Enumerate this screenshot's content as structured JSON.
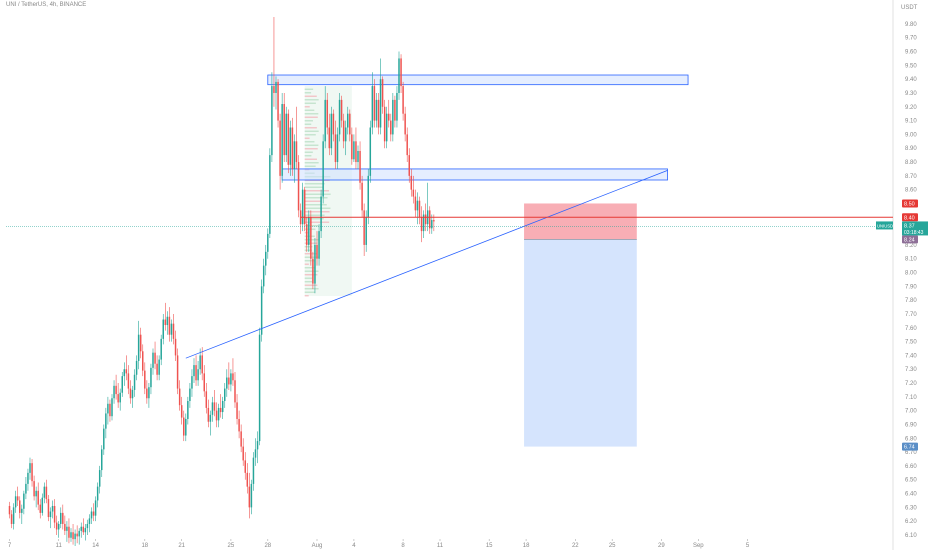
{
  "header": {
    "title": "UNI / TetherUS, 4h, BINANCE",
    "currency": "USDT"
  },
  "colors": {
    "up": "#26a69a",
    "down": "#ef5350",
    "trendline": "#2962ff",
    "zone_fill": "#cfe0ff",
    "zone_stroke": "#2962ff",
    "stop_fill": "#f7a0a8",
    "target_fill": "#d3e3fd",
    "price_line": "#26a69a",
    "entry_line": "#e53935",
    "badge_red": "#e53935",
    "badge_green": "#26a69a",
    "badge_purple": "#8e6f97",
    "badge_blue": "#5b8fc7"
  },
  "chart_data": {
    "type": "candlestick",
    "symbol": "UNIUSDT",
    "price_axis": {
      "range": [
        6.1,
        9.85
      ],
      "ticks": [
        "9.80",
        "9.70",
        "9.60",
        "9.50",
        "9.40",
        "9.30",
        "9.20",
        "9.10",
        "9.00",
        "8.90",
        "8.80",
        "8.70",
        "8.60",
        "8.50",
        "8.40",
        "8.30",
        "8.20",
        "8.10",
        "8.00",
        "7.90",
        "7.80",
        "7.70",
        "7.60",
        "7.50",
        "7.40",
        "7.30",
        "7.20",
        "7.10",
        "7.00",
        "6.90",
        "6.80",
        "6.70",
        "6.60",
        "6.50",
        "6.40",
        "6.30",
        "6.20",
        "6.10"
      ]
    },
    "time_axis": {
      "ticks": [
        {
          "label": "7",
          "bar": 0
        },
        {
          "label": "11",
          "bar": 24
        },
        {
          "label": "14",
          "bar": 42
        },
        {
          "label": "18",
          "bar": 66
        },
        {
          "label": "21",
          "bar": 84
        },
        {
          "label": "25",
          "bar": 108
        },
        {
          "label": "28",
          "bar": 126
        },
        {
          "label": "Aug",
          "bar": 150
        },
        {
          "label": "4",
          "bar": 168
        },
        {
          "label": "8",
          "bar": 192
        },
        {
          "label": "11",
          "bar": 210
        },
        {
          "label": "15",
          "bar": 234
        },
        {
          "label": "18",
          "bar": 252
        },
        {
          "label": "22",
          "bar": 276
        },
        {
          "label": "25",
          "bar": 294
        },
        {
          "label": "29",
          "bar": 318
        },
        {
          "label": "Sep",
          "bar": 336
        },
        {
          "label": "5",
          "bar": 360
        }
      ]
    },
    "price_labels": {
      "stop": "8.50",
      "entry": "8.40",
      "symbol_badge": "UNIUSDT",
      "last": "8.37",
      "countdown": "03:18:43",
      "secondary": "8.24",
      "target": "6.74"
    },
    "zones": [
      {
        "bar_start": 126,
        "bar_end": 331,
        "price_low": 9.36,
        "price_high": 9.43
      },
      {
        "bar_start": 133,
        "bar_end": 321,
        "price_low": 8.67,
        "price_high": 8.75
      }
    ],
    "volume_profile": {
      "bar_start": 144,
      "bar_end": 167,
      "price_low": 7.83,
      "price_high": 9.35
    },
    "trendline": {
      "bar_start": 86,
      "price_start": 7.38,
      "bar_end": 321,
      "price_end": 8.74
    },
    "entry_line": {
      "bar_start": 142,
      "bar_end": 363,
      "price": 8.4
    },
    "position": {
      "bar_start": 251,
      "bar_end": 306,
      "entry": 8.24,
      "stop": 8.5,
      "target": 6.74
    },
    "ohlc": [
      [
        6.31,
        6.34,
        6.22,
        6.25
      ],
      [
        6.25,
        6.28,
        6.15,
        6.18
      ],
      [
        6.18,
        6.33,
        6.14,
        6.3
      ],
      [
        6.3,
        6.42,
        6.26,
        6.38
      ],
      [
        6.38,
        6.45,
        6.31,
        6.35
      ],
      [
        6.35,
        6.38,
        6.22,
        6.26
      ],
      [
        6.26,
        6.32,
        6.18,
        6.29
      ],
      [
        6.29,
        6.42,
        6.25,
        6.4
      ],
      [
        6.4,
        6.52,
        6.36,
        6.47
      ],
      [
        6.47,
        6.58,
        6.42,
        6.55
      ],
      [
        6.55,
        6.66,
        6.5,
        6.62
      ],
      [
        6.62,
        6.65,
        6.45,
        6.49
      ],
      [
        6.49,
        6.53,
        6.35,
        6.38
      ],
      [
        6.38,
        6.45,
        6.3,
        6.42
      ],
      [
        6.42,
        6.48,
        6.28,
        6.32
      ],
      [
        6.32,
        6.36,
        6.22,
        6.26
      ],
      [
        6.26,
        6.4,
        6.24,
        6.37
      ],
      [
        6.37,
        6.48,
        6.33,
        6.45
      ],
      [
        6.45,
        6.5,
        6.33,
        6.36
      ],
      [
        6.36,
        6.39,
        6.2,
        6.23
      ],
      [
        6.23,
        6.3,
        6.15,
        6.27
      ],
      [
        6.27,
        6.35,
        6.22,
        6.31
      ],
      [
        6.31,
        6.36,
        6.15,
        6.19
      ],
      [
        6.19,
        6.24,
        6.1,
        6.14
      ],
      [
        6.14,
        6.2,
        6.08,
        6.18
      ],
      [
        6.18,
        6.3,
        6.15,
        6.26
      ],
      [
        6.26,
        6.32,
        6.14,
        6.18
      ],
      [
        6.18,
        6.24,
        6.1,
        6.13
      ],
      [
        6.13,
        6.2,
        6.05,
        6.16
      ],
      [
        6.16,
        6.22,
        6.04,
        6.08
      ],
      [
        6.08,
        6.15,
        6.05,
        6.12
      ],
      [
        6.12,
        6.18,
        6.03,
        6.07
      ],
      [
        6.07,
        6.14,
        6.02,
        6.11
      ],
      [
        6.11,
        6.17,
        6.04,
        6.09
      ],
      [
        6.09,
        6.15,
        6.03,
        6.13
      ],
      [
        6.13,
        6.19,
        6.08,
        6.16
      ],
      [
        6.16,
        6.22,
        6.1,
        6.12
      ],
      [
        6.12,
        6.18,
        6.06,
        6.15
      ],
      [
        6.15,
        6.21,
        6.1,
        6.18
      ],
      [
        6.18,
        6.25,
        6.12,
        6.22
      ],
      [
        6.22,
        6.3,
        6.18,
        6.27
      ],
      [
        6.27,
        6.33,
        6.2,
        6.24
      ],
      [
        6.24,
        6.38,
        6.2,
        6.35
      ],
      [
        6.35,
        6.48,
        6.3,
        6.45
      ],
      [
        6.45,
        6.6,
        6.4,
        6.57
      ],
      [
        6.57,
        6.75,
        6.52,
        6.72
      ],
      [
        6.72,
        6.9,
        6.68,
        6.87
      ],
      [
        6.87,
        7.02,
        6.8,
        6.98
      ],
      [
        6.98,
        7.1,
        6.9,
        7.05
      ],
      [
        7.05,
        7.08,
        6.92,
        6.96
      ],
      [
        6.96,
        7.12,
        6.93,
        7.09
      ],
      [
        7.09,
        7.22,
        7.05,
        7.18
      ],
      [
        7.18,
        7.26,
        7.08,
        7.12
      ],
      [
        7.12,
        7.2,
        7.02,
        7.06
      ],
      [
        7.06,
        7.16,
        7.0,
        7.13
      ],
      [
        7.13,
        7.28,
        7.1,
        7.25
      ],
      [
        7.25,
        7.35,
        7.18,
        7.3
      ],
      [
        7.3,
        7.4,
        7.22,
        7.27
      ],
      [
        7.27,
        7.33,
        7.12,
        7.16
      ],
      [
        7.16,
        7.22,
        7.05,
        7.09
      ],
      [
        7.09,
        7.18,
        7.02,
        7.15
      ],
      [
        7.15,
        7.3,
        7.1,
        7.26
      ],
      [
        7.26,
        7.4,
        7.22,
        7.36
      ],
      [
        7.36,
        7.65,
        7.3,
        7.55
      ],
      [
        7.55,
        7.6,
        7.38,
        7.43
      ],
      [
        7.43,
        7.48,
        7.25,
        7.29
      ],
      [
        7.29,
        7.35,
        7.12,
        7.16
      ],
      [
        7.16,
        7.22,
        7.05,
        7.09
      ],
      [
        7.09,
        7.2,
        7.02,
        7.17
      ],
      [
        7.17,
        7.34,
        7.12,
        7.31
      ],
      [
        7.31,
        7.45,
        7.26,
        7.42
      ],
      [
        7.42,
        7.5,
        7.3,
        7.34
      ],
      [
        7.34,
        7.4,
        7.22,
        7.26
      ],
      [
        7.26,
        7.4,
        7.22,
        7.37
      ],
      [
        7.37,
        7.55,
        7.33,
        7.52
      ],
      [
        7.52,
        7.7,
        7.48,
        7.66
      ],
      [
        7.66,
        7.78,
        7.58,
        7.62
      ],
      [
        7.62,
        7.72,
        7.55,
        7.68
      ],
      [
        7.68,
        7.75,
        7.5,
        7.55
      ],
      [
        7.55,
        7.66,
        7.5,
        7.63
      ],
      [
        7.63,
        7.7,
        7.48,
        7.52
      ],
      [
        7.52,
        7.58,
        7.36,
        7.4
      ],
      [
        7.4,
        7.45,
        7.12,
        7.16
      ],
      [
        7.16,
        7.22,
        7.0,
        7.04
      ],
      [
        7.04,
        7.1,
        6.9,
        6.95
      ],
      [
        6.95,
        7.0,
        6.78,
        6.82
      ],
      [
        6.82,
        6.98,
        6.78,
        6.94
      ],
      [
        6.94,
        7.1,
        6.9,
        7.07
      ],
      [
        7.07,
        7.2,
        7.02,
        7.16
      ],
      [
        7.16,
        7.3,
        7.1,
        7.25
      ],
      [
        7.25,
        7.38,
        7.2,
        7.33
      ],
      [
        7.33,
        7.4,
        7.18,
        7.22
      ],
      [
        7.22,
        7.36,
        7.18,
        7.3
      ],
      [
        7.3,
        7.45,
        7.26,
        7.4
      ],
      [
        7.4,
        7.46,
        7.22,
        7.27
      ],
      [
        7.27,
        7.33,
        7.1,
        7.14
      ],
      [
        7.14,
        7.2,
        6.98,
        7.02
      ],
      [
        7.02,
        7.08,
        6.88,
        6.92
      ],
      [
        6.92,
        7.0,
        6.82,
        6.97
      ],
      [
        6.97,
        7.1,
        6.92,
        7.06
      ],
      [
        7.06,
        7.15,
        6.96,
        7.0
      ],
      [
        7.0,
        7.06,
        6.88,
        6.93
      ],
      [
        6.93,
        7.05,
        6.88,
        7.02
      ],
      [
        7.02,
        7.12,
        6.95,
        6.99
      ],
      [
        6.99,
        7.1,
        6.94,
        7.07
      ],
      [
        7.07,
        7.2,
        7.02,
        7.16
      ],
      [
        7.16,
        7.3,
        7.1,
        7.24
      ],
      [
        7.24,
        7.35,
        7.15,
        7.19
      ],
      [
        7.19,
        7.3,
        7.14,
        7.27
      ],
      [
        7.27,
        7.38,
        7.18,
        7.22
      ],
      [
        7.22,
        7.28,
        7.02,
        7.06
      ],
      [
        7.06,
        7.12,
        6.9,
        6.94
      ],
      [
        6.94,
        7.0,
        6.8,
        6.85
      ],
      [
        6.85,
        6.9,
        6.7,
        6.74
      ],
      [
        6.74,
        6.8,
        6.6,
        6.64
      ],
      [
        6.64,
        6.7,
        6.5,
        6.55
      ],
      [
        6.55,
        6.62,
        6.4,
        6.45
      ],
      [
        6.45,
        6.55,
        6.22,
        6.3
      ],
      [
        6.3,
        6.5,
        6.25,
        6.47
      ],
      [
        6.47,
        6.7,
        6.42,
        6.66
      ],
      [
        6.66,
        6.8,
        6.6,
        6.72
      ],
      [
        6.72,
        6.85,
        6.62,
        6.78
      ],
      [
        6.78,
        7.6,
        6.75,
        7.55
      ],
      [
        7.55,
        7.95,
        7.5,
        7.9
      ],
      [
        7.9,
        8.1,
        7.85,
        8.05
      ],
      [
        8.05,
        8.2,
        7.98,
        8.15
      ],
      [
        8.15,
        8.32,
        8.1,
        8.28
      ],
      [
        8.28,
        8.9,
        8.25,
        8.85
      ],
      [
        8.85,
        9.45,
        8.8,
        9.35
      ],
      [
        9.35,
        9.85,
        9.2,
        9.3
      ],
      [
        9.3,
        9.42,
        9.18,
        9.38
      ],
      [
        9.38,
        9.4,
        9.05,
        9.1
      ],
      [
        9.1,
        9.15,
        8.6,
        8.7
      ],
      [
        8.7,
        9.3,
        8.65,
        9.22
      ],
      [
        9.22,
        9.3,
        8.8,
        8.85
      ],
      [
        8.85,
        9.2,
        8.8,
        9.15
      ],
      [
        9.15,
        9.18,
        8.72,
        8.78
      ],
      [
        8.78,
        9.1,
        8.7,
        9.05
      ],
      [
        9.05,
        9.12,
        8.7,
        8.75
      ],
      [
        8.75,
        9.0,
        8.65,
        8.95
      ],
      [
        8.95,
        9.2,
        8.75,
        8.8
      ],
      [
        8.8,
        8.85,
        8.4,
        8.45
      ],
      [
        8.45,
        8.5,
        8.28,
        8.35
      ],
      [
        8.35,
        8.65,
        8.3,
        8.6
      ],
      [
        8.6,
        8.62,
        8.3,
        8.35
      ],
      [
        8.35,
        8.4,
        8.15,
        8.2
      ],
      [
        8.2,
        8.45,
        8.15,
        8.4
      ],
      [
        8.4,
        8.45,
        8.05,
        8.1
      ],
      [
        8.1,
        8.15,
        7.88,
        7.92
      ],
      [
        7.92,
        8.25,
        7.85,
        8.2
      ],
      [
        8.2,
        8.3,
        8.05,
        8.1
      ],
      [
        8.1,
        8.35,
        8.05,
        8.3
      ],
      [
        8.3,
        8.6,
        8.25,
        8.55
      ],
      [
        8.55,
        9.0,
        8.5,
        8.95
      ],
      [
        8.95,
        9.35,
        8.9,
        9.25
      ],
      [
        9.25,
        9.3,
        9.0,
        9.05
      ],
      [
        9.05,
        9.15,
        8.85,
        8.9
      ],
      [
        8.9,
        9.2,
        8.85,
        9.15
      ],
      [
        9.15,
        9.18,
        8.95,
        9.0
      ],
      [
        9.0,
        9.1,
        8.75,
        8.8
      ],
      [
        8.8,
        9.05,
        8.75,
        9.0
      ],
      [
        9.0,
        9.3,
        8.95,
        9.25
      ],
      [
        9.25,
        9.28,
        9.05,
        9.1
      ],
      [
        9.1,
        9.15,
        8.9,
        8.95
      ],
      [
        8.95,
        9.1,
        8.85,
        9.05
      ],
      [
        9.05,
        9.2,
        9.0,
        9.15
      ],
      [
        9.15,
        9.18,
        8.95,
        9.0
      ],
      [
        9.0,
        9.05,
        8.78,
        8.82
      ],
      [
        8.82,
        9.0,
        8.8,
        8.95
      ],
      [
        8.95,
        9.05,
        8.75,
        8.8
      ],
      [
        8.8,
        8.92,
        8.75,
        8.88
      ],
      [
        8.88,
        8.95,
        8.6,
        8.65
      ],
      [
        8.65,
        8.7,
        8.4,
        8.45
      ],
      [
        8.45,
        8.5,
        8.12,
        8.2
      ],
      [
        8.2,
        8.45,
        8.15,
        8.4
      ],
      [
        8.4,
        8.75,
        8.35,
        8.7
      ],
      [
        8.7,
        9.1,
        8.65,
        9.05
      ],
      [
        9.05,
        9.45,
        9.0,
        9.35
      ],
      [
        9.35,
        9.4,
        9.05,
        9.1
      ],
      [
        9.1,
        9.3,
        9.05,
        9.25
      ],
      [
        9.25,
        9.3,
        9.0,
        9.05
      ],
      [
        9.05,
        9.55,
        9.0,
        9.4
      ],
      [
        9.4,
        9.42,
        9.15,
        9.2
      ],
      [
        9.2,
        9.25,
        8.9,
        8.95
      ],
      [
        8.95,
        9.2,
        8.9,
        9.15
      ],
      [
        9.15,
        9.25,
        9.05,
        9.1
      ],
      [
        9.1,
        9.15,
        8.95,
        9.0
      ],
      [
        9.0,
        9.3,
        8.95,
        9.25
      ],
      [
        9.25,
        9.28,
        9.05,
        9.1
      ],
      [
        9.1,
        9.35,
        9.05,
        9.3
      ],
      [
        9.3,
        9.6,
        9.25,
        9.55
      ],
      [
        9.55,
        9.58,
        9.3,
        9.35
      ],
      [
        9.35,
        9.38,
        9.1,
        9.15
      ],
      [
        9.15,
        9.2,
        8.95,
        9.0
      ],
      [
        9.0,
        9.05,
        8.8,
        8.85
      ],
      [
        8.85,
        8.9,
        8.65,
        8.7
      ],
      [
        8.7,
        8.75,
        8.55,
        8.6
      ],
      [
        8.6,
        8.7,
        8.5,
        8.55
      ],
      [
        8.55,
        8.6,
        8.4,
        8.45
      ],
      [
        8.45,
        8.58,
        8.35,
        8.52
      ],
      [
        8.52,
        8.55,
        8.35,
        8.4
      ],
      [
        8.4,
        8.48,
        8.22,
        8.3
      ],
      [
        8.3,
        8.45,
        8.25,
        8.42
      ],
      [
        8.42,
        8.5,
        8.3,
        8.35
      ],
      [
        8.35,
        8.65,
        8.3,
        8.45
      ],
      [
        8.45,
        8.48,
        8.28,
        8.32
      ],
      [
        8.32,
        8.42,
        8.28,
        8.38
      ],
      [
        8.38,
        8.42,
        8.3,
        8.37
      ]
    ]
  }
}
